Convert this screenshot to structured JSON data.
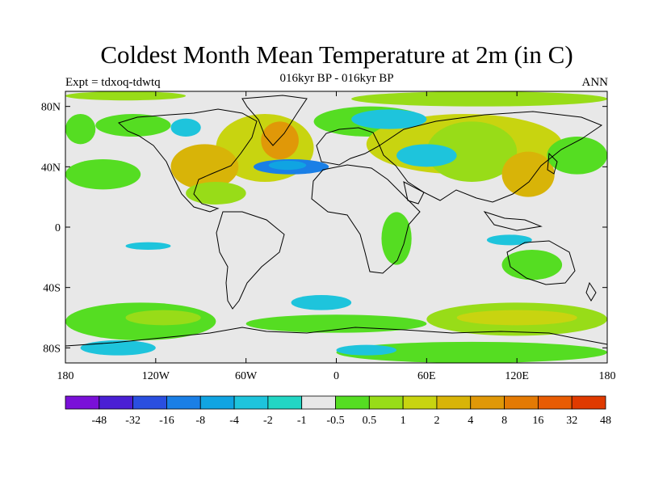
{
  "header": {
    "title": "Coldest Month Mean Temperature at 2m (in C)",
    "subtitle": "016kyr BP - 016kyr BP",
    "left_label": "Expt = tdxoq-tdwtq",
    "right_label": "ANN"
  },
  "axes": {
    "y_ticks": [
      {
        "lat": 80,
        "label": "80N"
      },
      {
        "lat": 40,
        "label": "40N"
      },
      {
        "lat": 0,
        "label": "0"
      },
      {
        "lat": -40,
        "label": "40S"
      },
      {
        "lat": -80,
        "label": "80S"
      }
    ],
    "x_ticks": [
      {
        "lon": -180,
        "label": "180"
      },
      {
        "lon": -120,
        "label": "120W"
      },
      {
        "lon": -60,
        "label": "60W"
      },
      {
        "lon": 0,
        "label": "0"
      },
      {
        "lon": 60,
        "label": "60E"
      },
      {
        "lon": 120,
        "label": "120E"
      },
      {
        "lon": 180,
        "label": "180"
      }
    ],
    "lon_range": [
      -180,
      180
    ],
    "lat_range": [
      -90,
      90
    ]
  },
  "colorbar": {
    "colors": [
      "#7a10d8",
      "#4a1fd4",
      "#2a4fe0",
      "#1a7fe6",
      "#10a4e2",
      "#1ec4dc",
      "#22d6c4",
      "#e8e8e8",
      "#55dd22",
      "#98dc18",
      "#c8d410",
      "#d8b408",
      "#e09808",
      "#e47a04",
      "#e85c04",
      "#e03a00"
    ],
    "labels": [
      "-48",
      "-32",
      "-16",
      "-8",
      "-4",
      "-2",
      "-1",
      "-0.5",
      "0.5",
      "1",
      "2",
      "4",
      "8",
      "16",
      "32",
      "48"
    ],
    "background": "#e8e8e8"
  },
  "map_regions": [
    {
      "color": "#98dc18",
      "lon": [
        -180,
        -100
      ],
      "lat": [
        84,
        90
      ]
    },
    {
      "color": "#98dc18",
      "lon": [
        10,
        180
      ],
      "lat": [
        80,
        90
      ]
    },
    {
      "color": "#55dd22",
      "lon": [
        -180,
        -160
      ],
      "lat": [
        55,
        75
      ]
    },
    {
      "color": "#55dd22",
      "lon": [
        -160,
        -110
      ],
      "lat": [
        60,
        75
      ]
    },
    {
      "color": "#1ec4dc",
      "lon": [
        -110,
        -90
      ],
      "lat": [
        60,
        72
      ]
    },
    {
      "color": "#c8d410",
      "lon": [
        -80,
        -15
      ],
      "lat": [
        30,
        75
      ]
    },
    {
      "color": "#d8b408",
      "lon": [
        -110,
        -65
      ],
      "lat": [
        25,
        55
      ]
    },
    {
      "color": "#e09808",
      "lon": [
        -50,
        -25
      ],
      "lat": [
        45,
        70
      ]
    },
    {
      "color": "#1a7fe6",
      "lon": [
        -55,
        -5
      ],
      "lat": [
        35,
        45
      ]
    },
    {
      "color": "#10a4e2",
      "lon": [
        -45,
        -20
      ],
      "lat": [
        38,
        44
      ]
    },
    {
      "color": "#55dd22",
      "lon": [
        -180,
        -130
      ],
      "lat": [
        25,
        45
      ]
    },
    {
      "color": "#55dd22",
      "lon": [
        -15,
        60
      ],
      "lat": [
        60,
        80
      ]
    },
    {
      "color": "#c8d410",
      "lon": [
        20,
        150
      ],
      "lat": [
        35,
        75
      ]
    },
    {
      "color": "#98dc18",
      "lon": [
        60,
        120
      ],
      "lat": [
        30,
        70
      ]
    },
    {
      "color": "#1ec4dc",
      "lon": [
        40,
        80
      ],
      "lat": [
        40,
        55
      ]
    },
    {
      "color": "#1ec4dc",
      "lon": [
        10,
        60
      ],
      "lat": [
        65,
        78
      ]
    },
    {
      "color": "#d8b408",
      "lon": [
        110,
        145
      ],
      "lat": [
        20,
        50
      ]
    },
    {
      "color": "#55dd22",
      "lon": [
        140,
        180
      ],
      "lat": [
        35,
        60
      ]
    },
    {
      "color": "#98dc18",
      "lon": [
        -100,
        -60
      ],
      "lat": [
        15,
        30
      ]
    },
    {
      "color": "#55dd22",
      "lon": [
        110,
        150
      ],
      "lat": [
        -35,
        -15
      ]
    },
    {
      "color": "#55dd22",
      "lon": [
        30,
        50
      ],
      "lat": [
        -25,
        10
      ]
    },
    {
      "color": "#1ec4dc",
      "lon": [
        -140,
        -110
      ],
      "lat": [
        -15,
        -10
      ]
    },
    {
      "color": "#1ec4dc",
      "lon": [
        100,
        130
      ],
      "lat": [
        -12,
        -5
      ]
    },
    {
      "color": "#55dd22",
      "lon": [
        -180,
        -80
      ],
      "lat": [
        -75,
        -50
      ]
    },
    {
      "color": "#98dc18",
      "lon": [
        -140,
        -90
      ],
      "lat": [
        -65,
        -55
      ]
    },
    {
      "color": "#1ec4dc",
      "lon": [
        -170,
        -120
      ],
      "lat": [
        -85,
        -75
      ]
    },
    {
      "color": "#55dd22",
      "lon": [
        -60,
        60
      ],
      "lat": [
        -70,
        -58
      ]
    },
    {
      "color": "#1ec4dc",
      "lon": [
        -30,
        10
      ],
      "lat": [
        -55,
        -45
      ]
    },
    {
      "color": "#98dc18",
      "lon": [
        60,
        180
      ],
      "lat": [
        -72,
        -50
      ]
    },
    {
      "color": "#c8d410",
      "lon": [
        80,
        160
      ],
      "lat": [
        -65,
        -55
      ]
    },
    {
      "color": "#55dd22",
      "lon": [
        0,
        180
      ],
      "lat": [
        -90,
        -76
      ]
    },
    {
      "color": "#1ec4dc",
      "lon": [
        0,
        40
      ],
      "lat": [
        -85,
        -78
      ]
    }
  ]
}
